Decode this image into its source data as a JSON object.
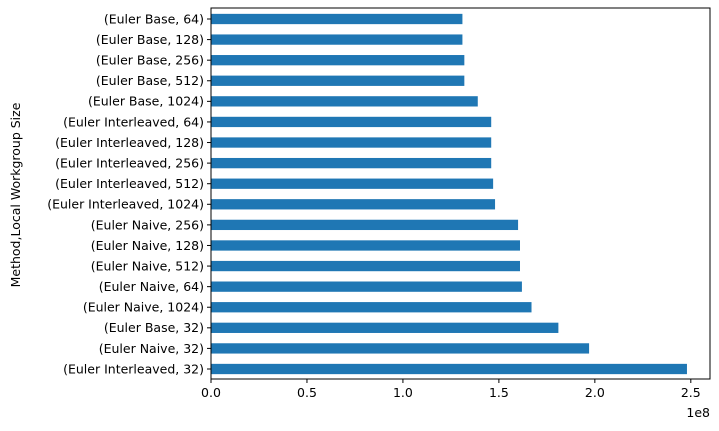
{
  "chart_data": {
    "type": "bar",
    "orientation": "horizontal",
    "title": "",
    "xlabel": "",
    "ylabel": "Method,Local Workgroup Size",
    "x_scale_label": "1e8",
    "xlim": [
      0,
      2.6
    ],
    "x_ticks": [
      0.0,
      0.5,
      1.0,
      1.5,
      2.0,
      2.5
    ],
    "x_tick_labels": [
      "0.0",
      "0.5",
      "1.0",
      "1.5",
      "2.0",
      "2.5"
    ],
    "grid": false,
    "legend": "none",
    "bar_color": "#1f77b4",
    "categories": [
      "(Euler Base, 64)",
      "(Euler Base, 128)",
      "(Euler Base, 256)",
      "(Euler Base, 512)",
      "(Euler Base, 1024)",
      "(Euler Interleaved, 64)",
      "(Euler Interleaved, 128)",
      "(Euler Interleaved, 256)",
      "(Euler Interleaved, 512)",
      "(Euler Interleaved, 1024)",
      "(Euler Naive, 256)",
      "(Euler Naive, 128)",
      "(Euler Naive, 512)",
      "(Euler Naive, 64)",
      "(Euler Naive, 1024)",
      "(Euler Base, 32)",
      "(Euler Naive, 32)",
      "(Euler Interleaved, 32)"
    ],
    "values": [
      1.31,
      1.31,
      1.32,
      1.32,
      1.39,
      1.46,
      1.46,
      1.46,
      1.47,
      1.48,
      1.6,
      1.61,
      1.61,
      1.62,
      1.67,
      1.81,
      1.97,
      2.48
    ]
  }
}
